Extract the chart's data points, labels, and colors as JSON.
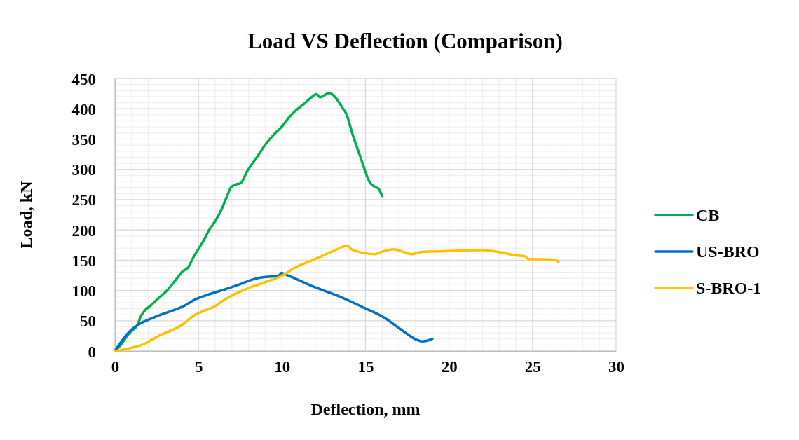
{
  "chart_data": {
    "type": "line",
    "title": "Load VS Deflection (Comparison)",
    "xlabel": "Deflection, mm",
    "ylabel": "Load, kN",
    "xlim": [
      0,
      30
    ],
    "xticks": [
      0,
      5,
      10,
      15,
      20,
      25,
      30
    ],
    "ylim": [
      0,
      450
    ],
    "yticks": [
      0,
      50,
      100,
      150,
      200,
      250,
      300,
      350,
      400,
      450
    ],
    "grid": true,
    "legend": "right",
    "marker": "none",
    "line_style": "solid",
    "series": [
      {
        "name": "CB",
        "color": "#00b050",
        "x": [
          0,
          0.4,
          0.81,
          1.2,
          1.37,
          1.51,
          1.79,
          2.14,
          2.6,
          3.12,
          3.6,
          4.03,
          4.38,
          4.7,
          5.01,
          5.3,
          5.64,
          5.99,
          6.37,
          6.7,
          6.97,
          7.25,
          7.52,
          7.94,
          8.5,
          9.06,
          9.5,
          10.04,
          10.4,
          10.74,
          11.09,
          11.4,
          11.72,
          12.07,
          12.28,
          12.84,
          13.19,
          13.47,
          13.68,
          13.85,
          14.2,
          14.7,
          15.29,
          15.57,
          15.78,
          15.99
        ],
        "values": [
          0,
          12,
          28,
          38,
          44,
          55,
          67,
          75,
          87,
          100,
          116,
          131,
          138,
          155,
          169,
          182,
          200,
          214,
          233,
          255,
          271,
          275,
          277,
          298,
          320,
          343,
          357,
          372,
          385,
          395,
          403,
          410,
          418,
          424,
          419,
          426,
          419,
          408,
          399,
          392,
          360,
          320,
          277,
          271,
          268,
          256
        ]
      },
      {
        "name": "US-BRO",
        "color": "#0070c0",
        "x": [
          0,
          0.53,
          1.02,
          1.37,
          2.21,
          3.05,
          4.03,
          4.87,
          5.57,
          6.83,
          7.46,
          8.36,
          8.92,
          9.4,
          9.76,
          9.97,
          10.25,
          12.0,
          13.26,
          14.94,
          16.06,
          16.9,
          17.5,
          18.02,
          18.37,
          18.7,
          19.0
        ],
        "values": [
          0,
          21,
          36,
          43,
          54,
          63,
          73,
          86,
          93,
          104,
          110,
          119,
          122,
          123,
          123,
          129,
          126,
          105,
          92,
          71,
          56,
          40,
          28,
          19,
          16,
          17,
          20
        ]
      },
      {
        "name": "S-BRO-1",
        "color": "#ffc000",
        "x": [
          0,
          0.95,
          1.86,
          2.35,
          2.84,
          3.19,
          4.17,
          4.59,
          5.29,
          5.99,
          6.41,
          7.81,
          8.92,
          10.04,
          10.74,
          12.0,
          12.98,
          13.95,
          14.1,
          14.24,
          15.57,
          15.99,
          16.69,
          17.74,
          18.43,
          19.97,
          21.93,
          23.05,
          24.03,
          24.59,
          24.73,
          26.27,
          26.48,
          26.55
        ],
        "values": [
          0,
          5,
          13,
          21,
          28,
          32,
          46,
          56,
          66,
          74,
          82,
          102,
          113,
          125,
          137,
          152,
          164,
          174,
          169,
          167,
          160,
          164,
          168,
          160,
          164,
          165,
          167,
          163,
          158,
          156,
          152,
          151,
          149,
          147
        ]
      }
    ]
  }
}
